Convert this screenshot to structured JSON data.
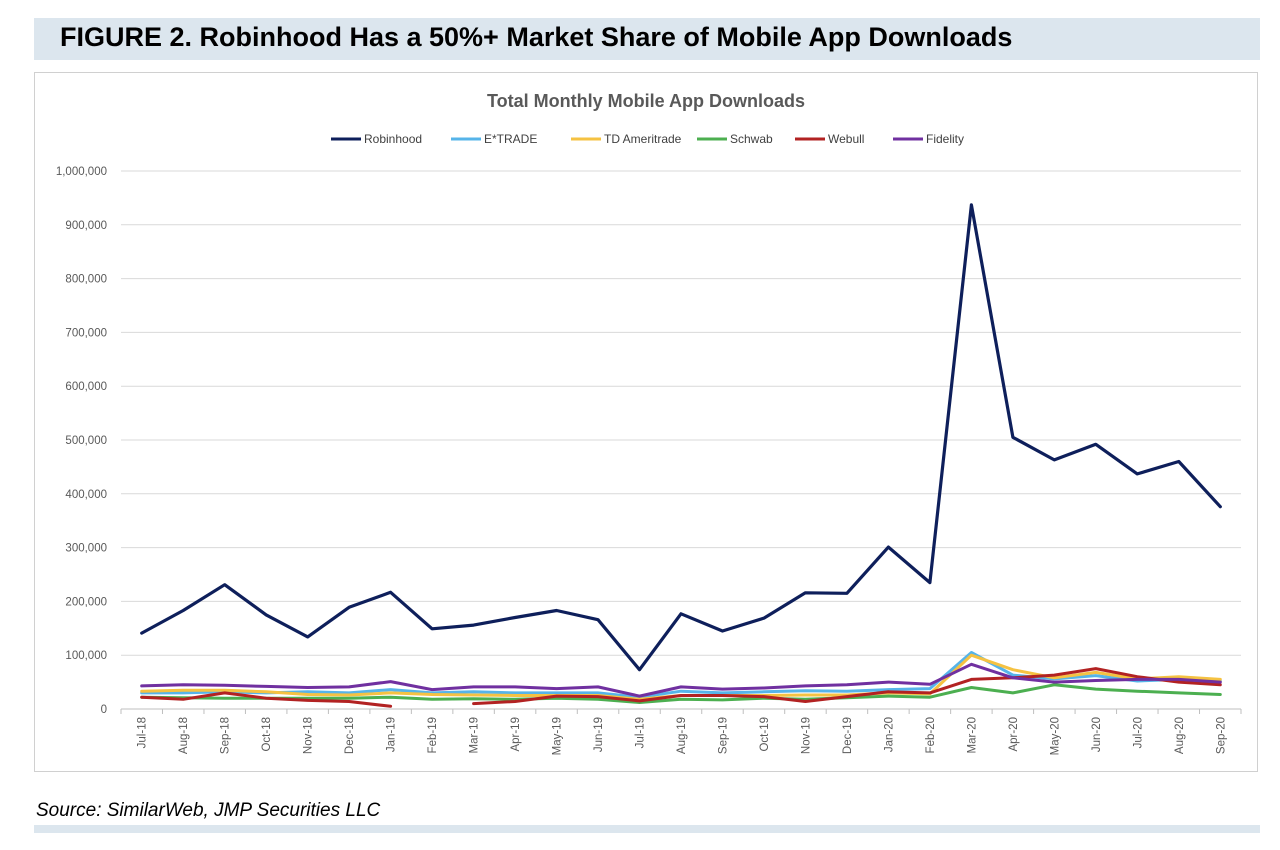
{
  "figure": {
    "title": "FIGURE 2. Robinhood Has a 50%+ Market Share of Mobile App Downloads",
    "source": "Source: SimilarWeb, JMP Securities LLC"
  },
  "chart_data": {
    "type": "line",
    "title": "Total Monthly Mobile App Downloads",
    "xlabel": "",
    "ylabel": "",
    "ylim": [
      0,
      1000000
    ],
    "yticks": [
      "0",
      "100,000",
      "200,000",
      "300,000",
      "400,000",
      "500,000",
      "600,000",
      "700,000",
      "800,000",
      "900,000",
      "1,000,000"
    ],
    "grid": "horizontal",
    "legend_position": "top",
    "categories": [
      "Jul-18",
      "Aug-18",
      "Sep-18",
      "Oct-18",
      "Nov-18",
      "Dec-18",
      "Jan-19",
      "Feb-19",
      "Mar-19",
      "Apr-19",
      "May-19",
      "Jun-19",
      "Jul-19",
      "Aug-19",
      "Sep-19",
      "Oct-19",
      "Nov-19",
      "Dec-19",
      "Jan-20",
      "Feb-20",
      "Mar-20",
      "Apr-20",
      "May-20",
      "Jun-20",
      "Jul-20",
      "Aug-20",
      "Sep-20"
    ],
    "series": [
      {
        "name": "Robinhood",
        "color": "#0e1f5b",
        "values": [
          141000,
          183000,
          231000,
          175000,
          134000,
          189000,
          217000,
          149000,
          156000,
          170000,
          183000,
          166000,
          73000,
          177000,
          145000,
          169000,
          216000,
          215000,
          301000,
          235000,
          937000,
          505000,
          463000,
          492000,
          437000,
          460000,
          376000
        ]
      },
      {
        "name": "E*TRADE",
        "color": "#56b4e9",
        "values": [
          30000,
          30000,
          32000,
          30000,
          32000,
          30000,
          36000,
          30000,
          32000,
          30000,
          30000,
          30000,
          22000,
          33000,
          30000,
          32000,
          34000,
          33000,
          36000,
          38000,
          105000,
          63000,
          56000,
          62000,
          52000,
          55000,
          52000
        ]
      },
      {
        "name": "TD Ameritrade",
        "color": "#f5c242",
        "values": [
          33000,
          35000,
          35000,
          32000,
          27000,
          26000,
          30000,
          27000,
          26000,
          25000,
          25000,
          25000,
          18000,
          25000,
          25000,
          25000,
          26000,
          26000,
          30000,
          28000,
          100000,
          73000,
          58000,
          68000,
          56000,
          60000,
          55000
        ]
      },
      {
        "name": "Schwab",
        "color": "#4caf50",
        "values": [
          22000,
          21000,
          20000,
          20000,
          20000,
          20000,
          22000,
          18000,
          19000,
          18000,
          20000,
          18000,
          12000,
          18000,
          17000,
          20000,
          18000,
          21000,
          24000,
          22000,
          40000,
          30000,
          45000,
          37000,
          33000,
          30000,
          27000
        ]
      },
      {
        "name": "Webull",
        "color": "#b22222",
        "values": [
          22000,
          18000,
          30000,
          20000,
          16000,
          14000,
          5000,
          null,
          10000,
          14000,
          24000,
          23000,
          15000,
          25000,
          25000,
          23000,
          14000,
          23000,
          32000,
          30000,
          55000,
          58000,
          63000,
          75000,
          60000,
          50000,
          45000
        ]
      },
      {
        "name": "Fidelity",
        "color": "#7030a0",
        "values": [
          43000,
          45000,
          44000,
          42000,
          40000,
          41000,
          51000,
          36000,
          41000,
          41000,
          38000,
          41000,
          24000,
          41000,
          37000,
          39000,
          43000,
          45000,
          50000,
          46000,
          83000,
          58000,
          50000,
          53000,
          55000,
          55000,
          50000
        ]
      }
    ]
  }
}
